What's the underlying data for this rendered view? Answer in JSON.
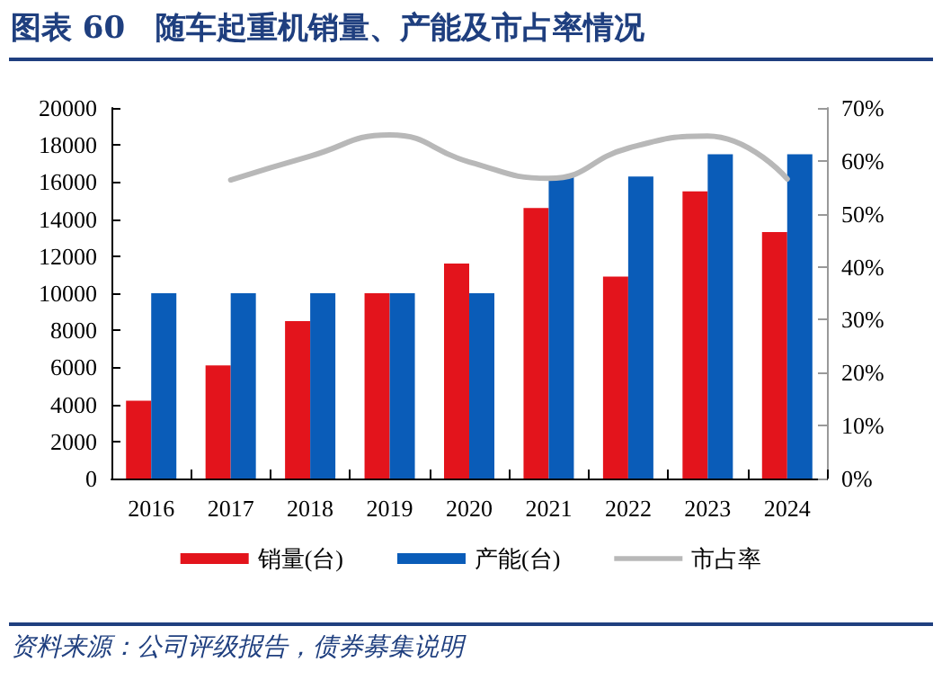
{
  "chart_data": {
    "type": "bar",
    "title": "图表 60　随车起重机销量、产能及市占率情况",
    "categories": [
      "2016",
      "2017",
      "2018",
      "2019",
      "2020",
      "2021",
      "2022",
      "2023",
      "2024"
    ],
    "series": [
      {
        "name": "销量(台)",
        "color": "#e3141c",
        "values": [
          4200,
          6100,
          8500,
          10000,
          11600,
          14600,
          10900,
          15500,
          13300
        ]
      },
      {
        "name": "产能(台)",
        "color": "#0a5cb8",
        "values": [
          10000,
          10000,
          10000,
          10000,
          10000,
          16300,
          16300,
          17500,
          17500
        ]
      },
      {
        "name": "市占率",
        "type": "line",
        "axis": "y2",
        "color": "#b8b8b8",
        "values": [
          null,
          56.4,
          60.9,
          64.9,
          59.8,
          56.7,
          62.4,
          64.7,
          56.6
        ]
      }
    ],
    "ylim": [
      0,
      20000
    ],
    "yticks": [
      0,
      2000,
      4000,
      6000,
      8000,
      10000,
      12000,
      14000,
      16000,
      18000,
      20000
    ],
    "y2lim": [
      0,
      70
    ],
    "y2ticks": [
      {
        "value": 0,
        "label": "0%"
      },
      {
        "value": 10,
        "label": "10%"
      },
      {
        "value": 20,
        "label": "20%"
      },
      {
        "value": 30,
        "label": "30%"
      },
      {
        "value": 40,
        "label": "40%"
      },
      {
        "value": 50,
        "label": "50%"
      },
      {
        "value": 60,
        "label": "60%"
      },
      {
        "value": 70,
        "label": "70%"
      }
    ],
    "grid": false,
    "legend": "bottom",
    "marker": "none",
    "annotations": [
      "资料来源：公司评级报告，债券募集说明"
    ]
  }
}
